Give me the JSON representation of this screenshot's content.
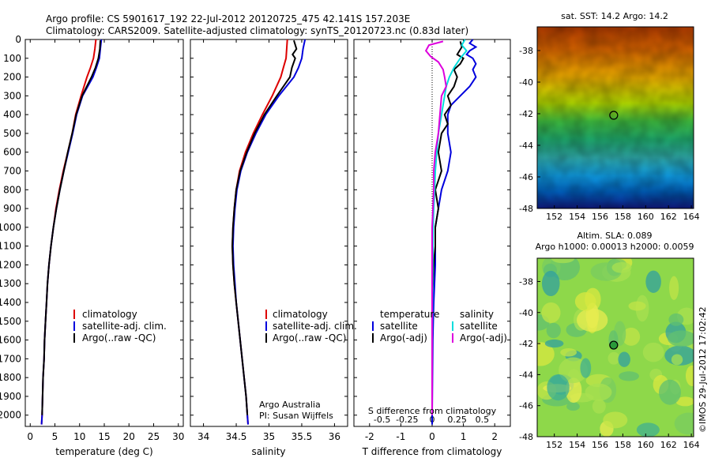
{
  "header": {
    "line1": "Argo profile: CS 5901617_192 22-Jul-2012 20120725_475 42.141S 157.203E",
    "line2": "Climatology: CARS2009. Satellite-adjusted climatology: synTS_20120723.nc (0.83d later)"
  },
  "colors": {
    "climatology": "#dd0000",
    "satellite": "#0000dd",
    "argo": "#000000",
    "salinity_satellite": "#00dddd",
    "salinity_argo": "#dd00dd"
  },
  "chart_data": [
    {
      "type": "line",
      "panel": "temperature",
      "xlabel": "temperature (deg C)",
      "ylabel": "",
      "xlim": [
        -1,
        31
      ],
      "ylim": [
        2060,
        0
      ],
      "xticks": [
        0,
        5,
        10,
        15,
        20,
        25,
        30
      ],
      "yticks": [
        0,
        100,
        200,
        300,
        400,
        500,
        600,
        700,
        800,
        900,
        1000,
        1100,
        1200,
        1300,
        1400,
        1500,
        1600,
        1700,
        1800,
        1900,
        2000
      ],
      "legend": [
        "climatology",
        "satellite-adj. clim.",
        "Argo(..raw -QC)"
      ],
      "series": [
        {
          "name": "climatology",
          "color_key": "climatology",
          "depth": [
            0,
            50,
            100,
            150,
            200,
            300,
            400,
            500,
            600,
            700,
            800,
            900,
            1000,
            1100,
            1200,
            1300,
            1400,
            1500,
            1600,
            1700,
            1800,
            1900,
            2000,
            2050
          ],
          "values": [
            13.3,
            13.1,
            12.8,
            12.2,
            11.5,
            10.3,
            9.2,
            8.5,
            7.6,
            6.7,
            5.9,
            5.2,
            4.7,
            4.2,
            3.8,
            3.5,
            3.3,
            3.1,
            2.9,
            2.8,
            2.6,
            2.5,
            2.4,
            2.3
          ]
        },
        {
          "name": "satellite-adj. clim.",
          "color_key": "satellite",
          "depth": [
            0,
            50,
            100,
            150,
            200,
            300,
            400,
            500,
            600,
            700,
            800,
            900,
            1000,
            1100,
            1200,
            1300,
            1400,
            1500,
            1600,
            1700,
            1800,
            1900,
            2000,
            2050
          ],
          "values": [
            14.4,
            14.2,
            14.0,
            13.4,
            12.7,
            10.6,
            9.4,
            8.6,
            7.7,
            6.8,
            6.0,
            5.3,
            4.7,
            4.2,
            3.8,
            3.5,
            3.3,
            3.1,
            2.9,
            2.8,
            2.6,
            2.5,
            2.4,
            2.3
          ]
        },
        {
          "name": "Argo(..raw -QC)",
          "color_key": "argo",
          "depth": [
            5,
            50,
            100,
            150,
            200,
            300,
            400,
            500,
            600,
            700,
            800,
            900,
            1000,
            1100,
            1200,
            1300,
            1400,
            1500,
            1600,
            1700,
            1800,
            1900,
            2000
          ],
          "values": [
            14.2,
            14.1,
            13.8,
            13.2,
            12.4,
            10.5,
            9.3,
            8.5,
            7.6,
            6.8,
            6.0,
            5.3,
            4.7,
            4.2,
            3.8,
            3.5,
            3.3,
            3.1,
            2.9,
            2.8,
            2.6,
            2.5,
            2.4
          ]
        }
      ]
    },
    {
      "type": "line",
      "panel": "salinity",
      "xlabel": "salinity",
      "xlim": [
        33.8,
        36.2
      ],
      "ylim": [
        2060,
        0
      ],
      "xticks": [
        34,
        34.5,
        35,
        35.5,
        36
      ],
      "xticklabels": [
        "34",
        "34.5",
        "35",
        "35.5",
        "36"
      ],
      "legend": [
        "climatology",
        "satellite-adj. clim.",
        "Argo(..raw -QC)"
      ],
      "annotation": [
        "Argo Australia",
        "PI: Susan Wijffels"
      ],
      "series": [
        {
          "name": "climatology",
          "color_key": "climatology",
          "depth": [
            0,
            50,
            100,
            150,
            200,
            300,
            400,
            500,
            600,
            700,
            800,
            900,
            1000,
            1100,
            1200,
            1300,
            1400,
            1500,
            1600,
            1700,
            1800,
            1900,
            2000,
            2050
          ],
          "values": [
            35.28,
            35.27,
            35.26,
            35.22,
            35.18,
            35.05,
            34.9,
            34.76,
            34.64,
            34.55,
            34.5,
            34.47,
            34.45,
            34.44,
            34.45,
            34.47,
            34.5,
            34.53,
            34.56,
            34.59,
            34.62,
            34.65,
            34.67,
            34.68
          ]
        },
        {
          "name": "satellite-adj. clim.",
          "color_key": "satellite",
          "depth": [
            0,
            50,
            100,
            150,
            200,
            300,
            400,
            500,
            600,
            700,
            800,
            900,
            1000,
            1100,
            1200,
            1300,
            1400,
            1500,
            1600,
            1700,
            1800,
            1900,
            2000,
            2050
          ],
          "values": [
            35.55,
            35.52,
            35.5,
            35.45,
            35.38,
            35.15,
            34.95,
            34.8,
            34.67,
            34.57,
            34.51,
            34.48,
            34.46,
            34.45,
            34.46,
            34.48,
            34.5,
            34.53,
            34.56,
            34.59,
            34.62,
            34.65,
            34.67,
            34.68
          ]
        },
        {
          "name": "Argo(..raw -QC)",
          "color_key": "argo",
          "depth": [
            5,
            50,
            80,
            100,
            150,
            200,
            300,
            400,
            500,
            600,
            700,
            800,
            900,
            1000,
            1100,
            1200,
            1300,
            1400,
            1500,
            1600,
            1700,
            1800,
            1900,
            2000
          ],
          "values": [
            35.38,
            35.42,
            35.36,
            35.4,
            35.35,
            35.32,
            35.12,
            34.93,
            34.78,
            34.66,
            34.56,
            34.5,
            34.47,
            34.45,
            34.44,
            34.45,
            34.47,
            34.5,
            34.53,
            34.56,
            34.59,
            34.62,
            34.65,
            34.67
          ]
        }
      ]
    },
    {
      "type": "line",
      "panel": "difference",
      "xlabel": "T difference from climatology",
      "xlabel_top": "S difference from climatology",
      "xlim": [
        -2.5,
        2.5
      ],
      "ylim": [
        2060,
        0
      ],
      "xticks": [
        -2,
        -1,
        0,
        1,
        2
      ],
      "xticklabels_top": [
        "-0.5",
        "-0.25",
        "0",
        "0.25",
        "0.5"
      ],
      "legend_groups": [
        {
          "title": "temperature",
          "items": [
            "satellite",
            "Argo(-adj)"
          ]
        },
        {
          "title": "salinity",
          "items": [
            "satellite",
            "Argo(-adj)"
          ]
        }
      ],
      "series": [
        {
          "name": "satellite",
          "group": "temperature",
          "color_key": "satellite",
          "depth": [
            0,
            20,
            40,
            60,
            80,
            100,
            130,
            160,
            200,
            250,
            300,
            350,
            400,
            500,
            600,
            700,
            800,
            900,
            1000,
            1200,
            1400,
            1600,
            1800,
            2000,
            2050
          ],
          "values": [
            1.3,
            1.2,
            1.4,
            1.2,
            1.1,
            1.3,
            1.4,
            1.3,
            1.4,
            1.2,
            0.9,
            0.6,
            0.5,
            0.5,
            0.6,
            0.5,
            0.3,
            0.2,
            0.1,
            0.1,
            0.05,
            0.02,
            0.01,
            0.0,
            0.0
          ]
        },
        {
          "name": "Argo(-adj)",
          "group": "temperature",
          "color_key": "argo",
          "depth": [
            10,
            40,
            80,
            100,
            130,
            160,
            200,
            250,
            300,
            350,
            400,
            450,
            500,
            600,
            700,
            800,
            900,
            1000,
            1100,
            1200,
            1400,
            1600,
            1800,
            2000
          ],
          "values": [
            0.9,
            0.95,
            0.8,
            1.0,
            0.9,
            0.7,
            0.8,
            0.7,
            0.5,
            0.6,
            0.4,
            0.5,
            0.3,
            0.2,
            0.3,
            0.1,
            0.2,
            0.1,
            0.1,
            0.05,
            0.0,
            0.0,
            0.0,
            0.0
          ]
        },
        {
          "name": "satellite",
          "group": "salinity",
          "color_key": "salinity_satellite",
          "depth": [
            0,
            30,
            60,
            100,
            150,
            200,
            250,
            300,
            400,
            500,
            600,
            700,
            800,
            900,
            1000,
            1200,
            1400,
            1600,
            1800,
            2000
          ],
          "values": [
            1.05,
            0.95,
            1.1,
            0.9,
            0.7,
            0.55,
            0.45,
            0.4,
            0.3,
            0.2,
            0.15,
            0.1,
            0.08,
            0.05,
            0.03,
            0.02,
            0.01,
            0.0,
            0.0,
            0.0
          ]
        },
        {
          "name": "Argo(-adj)",
          "group": "salinity",
          "color_key": "salinity_argo",
          "depth": [
            10,
            30,
            60,
            90,
            120,
            160,
            200,
            250,
            300,
            400,
            500,
            600,
            700,
            800,
            1000,
            1200,
            1400,
            1600,
            1800,
            2000
          ],
          "values": [
            0.35,
            -0.1,
            -0.2,
            -0.05,
            0.2,
            0.35,
            0.4,
            0.45,
            0.3,
            0.25,
            0.2,
            0.1,
            0.05,
            0.05,
            0.0,
            0.0,
            0.0,
            0.0,
            0.0,
            0.0
          ]
        }
      ]
    },
    {
      "type": "heatmap",
      "panel": "sst_map",
      "title": "sat. SST: 14.2  Argo: 14.2",
      "xlim": [
        150.5,
        164.2
      ],
      "ylim": [
        -48,
        -36.5
      ],
      "xticks": [
        152,
        154,
        156,
        158,
        160,
        162,
        164
      ],
      "yticks": [
        -38,
        -40,
        -42,
        -44,
        -46,
        -48
      ],
      "marker": {
        "lon": 157.2,
        "lat": -42.1
      }
    },
    {
      "type": "heatmap",
      "panel": "sla_map",
      "title": "Altim. SLA: 0.089",
      "title2": "Argo h1000: 0.00013 h2000: 0.0059",
      "xlim": [
        150.5,
        164.2
      ],
      "ylim": [
        -48,
        -36.5
      ],
      "xticks": [
        152,
        154,
        156,
        158,
        160,
        162,
        164
      ],
      "yticks": [
        -38,
        -40,
        -42,
        -44,
        -46,
        -48
      ],
      "marker": {
        "lon": 157.2,
        "lat": -42.1
      }
    }
  ],
  "footer": {
    "credit": "©IMOS 29-Jul-2012 17:02:42"
  }
}
